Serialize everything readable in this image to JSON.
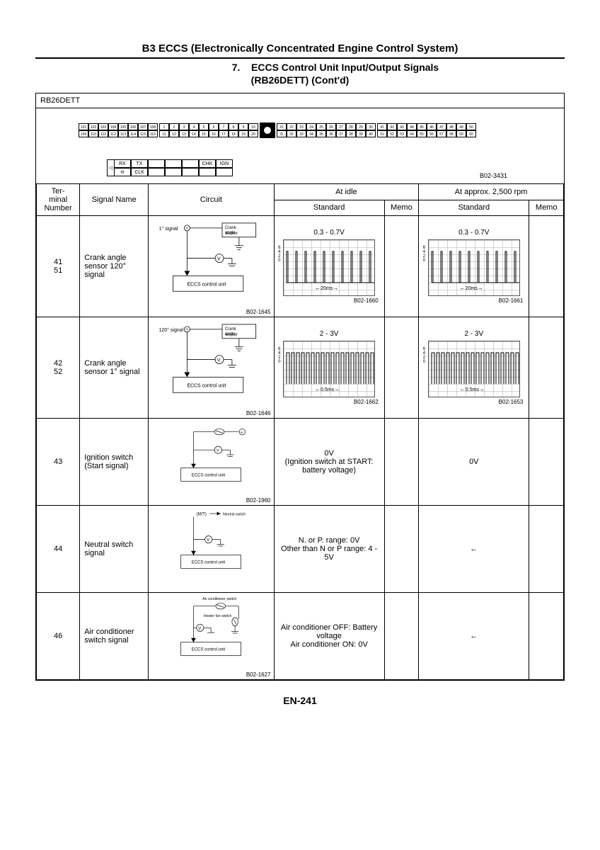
{
  "header": {
    "title": "B3 ECCS (Electronically Concentrated Engine Control System)",
    "section_num": "7.",
    "section_title": "ECCS Control Unit Input/Output Signals",
    "section_sub": "(RB26DETT) (Cont'd)"
  },
  "engine_code": "RB26DETT",
  "connector": {
    "block_a_top": [
      "101",
      "102",
      "103",
      "104",
      "105",
      "106",
      "107",
      "108"
    ],
    "block_a_bot": [
      "109",
      "110",
      "111",
      "112",
      "113",
      "114",
      "115",
      "116"
    ],
    "block_b_top": [
      "1",
      "2",
      "3",
      "4",
      "5",
      "6",
      "7",
      "8",
      "9",
      "10"
    ],
    "block_b_bot": [
      "11",
      "12",
      "13",
      "14",
      "15",
      "16",
      "17",
      "18",
      "19",
      "20"
    ],
    "block_c_top": [
      "21",
      "22",
      "23",
      "24",
      "25",
      "26",
      "27",
      "28",
      "29",
      "30"
    ],
    "block_c_bot": [
      "31",
      "32",
      "33",
      "34",
      "35",
      "36",
      "37",
      "38",
      "39",
      "40"
    ],
    "block_d_top": [
      "41",
      "42",
      "43",
      "44",
      "45",
      "46",
      "47",
      "48",
      "49",
      "50"
    ],
    "block_d_bot": [
      "51",
      "52",
      "53",
      "54",
      "55",
      "56",
      "57",
      "58",
      "59",
      "60"
    ],
    "aux_top": [
      "RX",
      "TX",
      "",
      "",
      "",
      "CHK",
      "IGN"
    ],
    "aux_bot": [
      "⊖",
      "CLK",
      "",
      "",
      "",
      "",
      ""
    ],
    "ref": "B02-3431"
  },
  "table_headers": {
    "terminal": "Ter-\nminal\nNumber",
    "signal": "Signal Name",
    "circuit": "Circuit",
    "idle": "At idle",
    "rpm": "At approx. 2,500 rpm",
    "standard": "Standard",
    "memo": "Memo"
  },
  "rows": [
    {
      "terminal": "41\n51",
      "signal": "Crank angle sensor 120° signal",
      "circuit_labels": {
        "sig": "1° signal",
        "sensor": "Crank angle sensor",
        "unit": "ECCS control unit",
        "ref": "B02-1645"
      },
      "idle_voltage": "0.3 - 0.7V",
      "idle_time": "20ms",
      "idle_ref": "B02-1660",
      "rpm_voltage": "0.3 - 0.7V",
      "rpm_time": "20ms",
      "rpm_ref": "B02-1661",
      "has_wave": true,
      "pulse_type": "sparse"
    },
    {
      "terminal": "42\n52",
      "signal": "Crank angle sensor 1° signal",
      "circuit_labels": {
        "sig": "120° signal",
        "sensor": "Crank angle sensor",
        "unit": "ECCS control unit",
        "ref": "B02-1646"
      },
      "idle_voltage": "2 - 3V",
      "idle_time": "0.5ms",
      "idle_ref": "B02-1662",
      "rpm_voltage": "2 - 3V",
      "rpm_time": "0.5ms",
      "rpm_ref": "B02-1653",
      "has_wave": true,
      "pulse_type": "dense"
    },
    {
      "terminal": "43",
      "signal": "Ignition switch (Start signal)",
      "circuit_labels": {
        "unit": "ECCS control unit",
        "ref": "B02-1960"
      },
      "idle_text": "0V\n(Ignition switch at START: battery voltage)",
      "rpm_text": "0V",
      "has_wave": false
    },
    {
      "terminal": "44",
      "signal": "Neutral switch signal",
      "circuit_labels": {
        "sw": "Neutral switch",
        "mt": "(M/T)",
        "unit": "ECCS control unit"
      },
      "idle_text": "N. or P. range: 0V\nOther than N or P range: 4 - 5V",
      "rpm_text": "←",
      "has_wave": false
    },
    {
      "terminal": "46",
      "signal": "Air conditioner switch signal",
      "circuit_labels": {
        "ac": "Air conditioner switch",
        "hf": "Heater fan switch",
        "unit": "ECCS control unit",
        "ref": "B02-1627"
      },
      "idle_text": "Air conditioner OFF: Battery voltage\nAir conditioner ON: 0V",
      "rpm_text": "←",
      "has_wave": false
    }
  ],
  "page_number": "EN-241",
  "colors": {
    "bg": "#ffffff",
    "ink": "#000000",
    "grid": "#aaaaaa"
  }
}
